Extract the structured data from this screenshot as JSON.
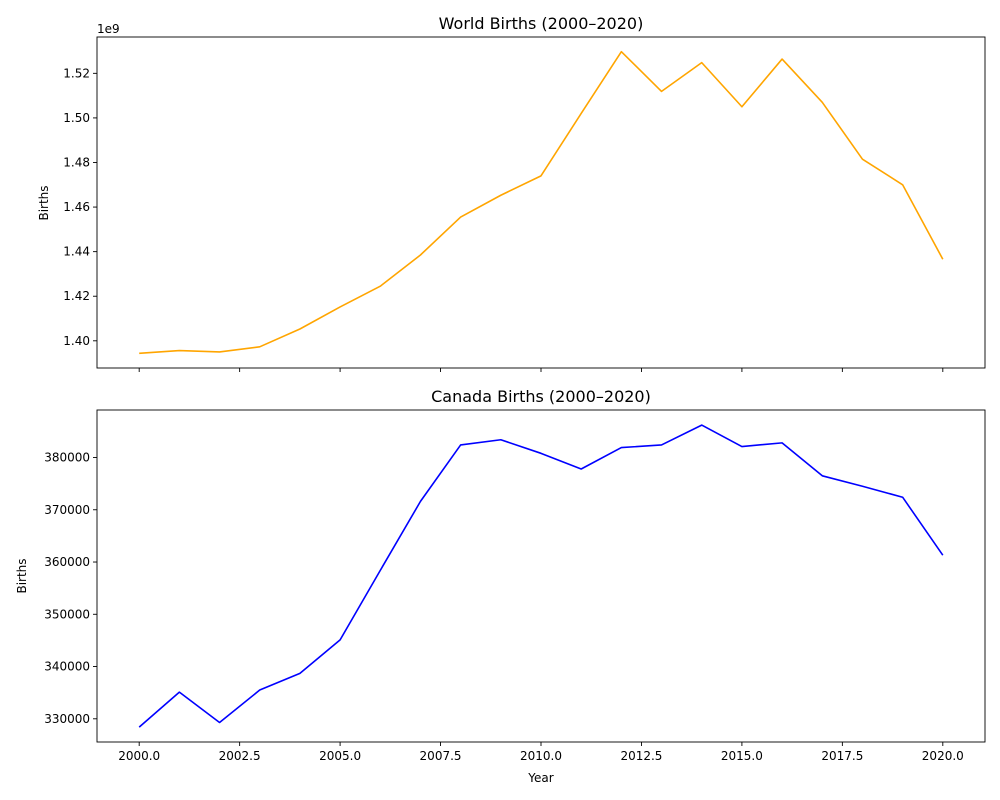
{
  "chart_data": [
    {
      "type": "line",
      "title": "World Births (2000–2020)",
      "xlabel": "",
      "ylabel": "Births",
      "offset_label": "1e9",
      "color": "#ffa500",
      "x": [
        2000,
        2001,
        2002,
        2003,
        2004,
        2005,
        2006,
        2007,
        2008,
        2009,
        2010,
        2011,
        2012,
        2013,
        2014,
        2015,
        2016,
        2017,
        2018,
        2019,
        2020
      ],
      "values": [
        1.3944,
        1.3956,
        1.395,
        1.3973,
        1.4053,
        1.4152,
        1.4245,
        1.4385,
        1.4555,
        1.4653,
        1.474,
        1.502,
        1.5297,
        1.5119,
        1.5248,
        1.505,
        1.5264,
        1.507,
        1.4815,
        1.47,
        1.4366
      ],
      "xlim": [
        1998.95,
        2021.05
      ],
      "ylim": [
        1.3878,
        1.5363
      ],
      "x_ticks": [
        2000,
        2002.5,
        2005,
        2007.5,
        2010,
        2012.5,
        2015,
        2017.5,
        2020
      ],
      "x_tick_labels": [],
      "y_ticks": [
        1.4,
        1.42,
        1.44,
        1.46,
        1.48,
        1.5,
        1.52
      ],
      "y_tick_labels": [
        "1.40",
        "1.42",
        "1.44",
        "1.46",
        "1.48",
        "1.50",
        "1.52"
      ],
      "grid": false
    },
    {
      "type": "line",
      "title": "Canada Births (2000–2020)",
      "xlabel": "Year",
      "ylabel": "Births",
      "offset_label": "",
      "color": "#0000ff",
      "x": [
        2000,
        2001,
        2002,
        2003,
        2004,
        2005,
        2006,
        2007,
        2008,
        2009,
        2010,
        2011,
        2012,
        2013,
        2014,
        2015,
        2016,
        2017,
        2018,
        2019,
        2020
      ],
      "values": [
        328400,
        335100,
        329300,
        335500,
        338700,
        345100,
        358400,
        371600,
        382400,
        383400,
        380800,
        377800,
        381900,
        382400,
        386200,
        382100,
        382800,
        376500,
        374500,
        372400,
        361300
      ],
      "xlim": [
        1998.95,
        2021.05
      ],
      "ylim": [
        325560,
        389090
      ],
      "x_ticks": [
        2000,
        2002.5,
        2005,
        2007.5,
        2010,
        2012.5,
        2015,
        2017.5,
        2020
      ],
      "x_tick_labels": [
        "2000.0",
        "2002.5",
        "2005.0",
        "2007.5",
        "2010.0",
        "2012.5",
        "2015.0",
        "2017.5",
        "2020.0"
      ],
      "y_ticks": [
        330000,
        340000,
        350000,
        360000,
        370000,
        380000
      ],
      "y_tick_labels": [
        "330000",
        "340000",
        "350000",
        "360000",
        "370000",
        "380000"
      ],
      "grid": false
    }
  ]
}
